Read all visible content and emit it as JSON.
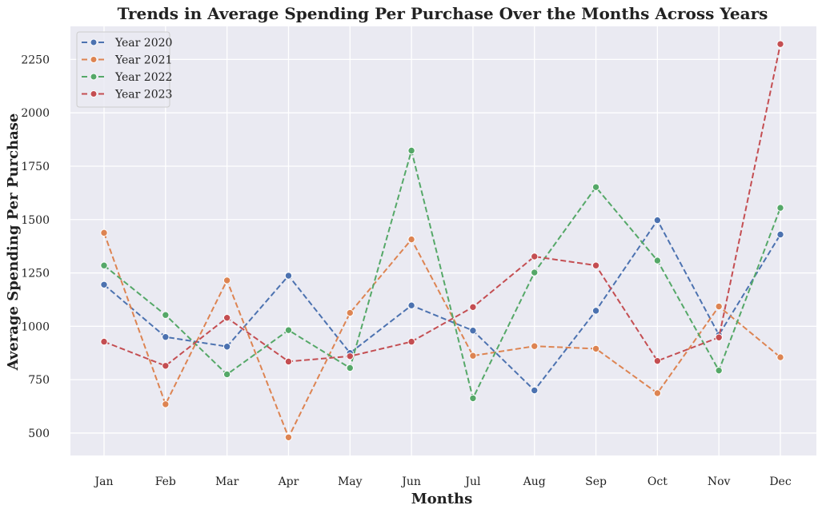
{
  "chart_data": {
    "type": "line",
    "title": "Trends in Average Spending Per Purchase Over the Months Across Years",
    "xlabel": "Months",
    "ylabel": "Average Spending Per Purchase",
    "categories": [
      "Jan",
      "Feb",
      "Mar",
      "Apr",
      "May",
      "Jun",
      "Jul",
      "Aug",
      "Sep",
      "Oct",
      "Nov",
      "Dec"
    ],
    "ylim": [
      395,
      2405
    ],
    "yticks": [
      500,
      750,
      1000,
      1250,
      1500,
      1750,
      2000,
      2250
    ],
    "grid": true,
    "legend_position": "top-left",
    "series": [
      {
        "name": "Year 2020",
        "color": "#4c72b0",
        "values": [
          1195,
          950,
          905,
          1237,
          875,
          1098,
          980,
          700,
          1073,
          1497,
          960,
          1430
        ]
      },
      {
        "name": "Year 2021",
        "color": "#dd8452",
        "values": [
          1438,
          635,
          1215,
          480,
          1063,
          1407,
          862,
          907,
          895,
          687,
          1093,
          855
        ]
      },
      {
        "name": "Year 2022",
        "color": "#55a868",
        "values": [
          1285,
          1053,
          775,
          982,
          805,
          1823,
          663,
          1252,
          1652,
          1308,
          793,
          1555
        ]
      },
      {
        "name": "Year 2023",
        "color": "#c44e52",
        "values": [
          928,
          815,
          1040,
          835,
          860,
          928,
          1090,
          1327,
          1285,
          838,
          948,
          2322
        ]
      }
    ]
  }
}
